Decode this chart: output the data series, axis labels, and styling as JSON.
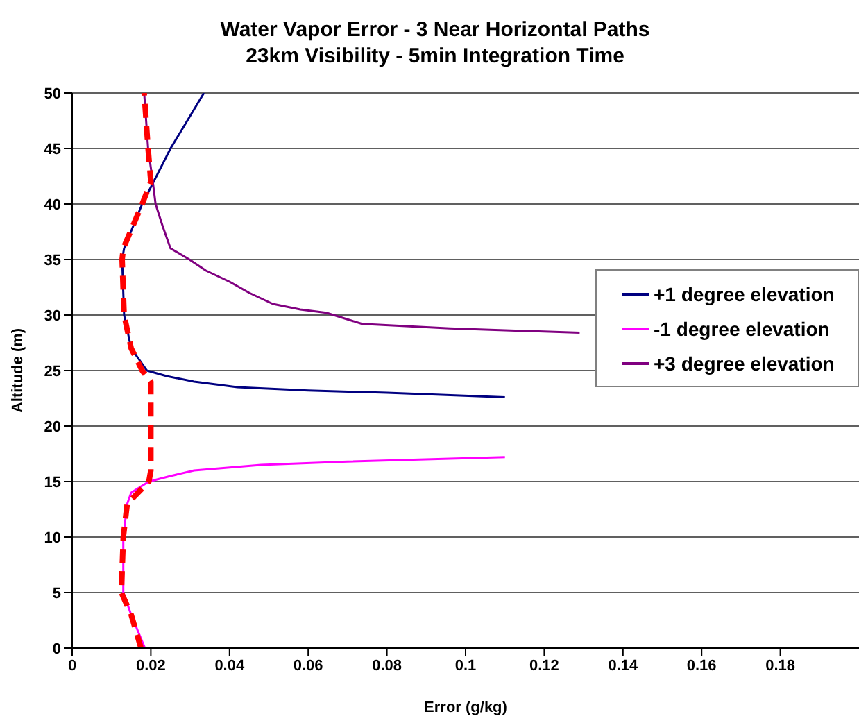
{
  "chart_data": {
    "type": "line",
    "title": "Water Vapor Error - 3 Near Horizontal Paths\n23km Visibility - 5min Integration Time",
    "xlabel": "Error (g/kg)",
    "ylabel": "Altitude (m)",
    "xlim": [
      0,
      0.2
    ],
    "xticks": [
      0,
      0.02,
      0.04,
      0.06,
      0.08,
      0.1,
      0.12,
      0.14,
      0.16,
      0.18
    ],
    "ylim": [
      0,
      50
    ],
    "yticks": [
      0,
      5,
      10,
      15,
      20,
      25,
      30,
      35,
      40,
      45,
      50
    ],
    "grid": "y",
    "legend": "right",
    "marker": "none",
    "series": [
      {
        "name": "+1 degree elevation",
        "color": "#000080",
        "line_style": "solid",
        "x": [
          0.0335,
          0.025,
          0.0207,
          0.0178,
          0.0132,
          0.0127,
          0.0132,
          0.015,
          0.019,
          0.024,
          0.031,
          0.042,
          0.06,
          0.08,
          0.11
        ],
        "values": [
          50,
          45,
          42,
          40,
          36,
          35,
          30,
          27,
          25,
          24.5,
          24,
          23.5,
          23.2,
          23,
          22.6
        ]
      },
      {
        "name": "-1 degree elevation",
        "color": "#ff00ff",
        "line_style": "solid",
        "x": [
          0.0185,
          0.015,
          0.013,
          0.013,
          0.014,
          0.015,
          0.0195,
          0.025,
          0.031,
          0.048,
          0.07,
          0.11
        ],
        "values": [
          0,
          3,
          5,
          10,
          13,
          14,
          15,
          15.5,
          16,
          16.5,
          16.8,
          17.2
        ]
      },
      {
        "name": "+3 degree elevation",
        "color": "#800080",
        "line_style": "solid",
        "x": [
          0.0183,
          0.0193,
          0.0205,
          0.0212,
          0.023,
          0.025,
          0.0298,
          0.034,
          0.04,
          0.045,
          0.051,
          0.058,
          0.0646,
          0.0737,
          0.096,
          0.129
        ],
        "values": [
          50,
          45,
          42,
          40,
          38,
          36,
          35,
          34,
          33,
          32,
          31,
          30.5,
          30.2,
          29.2,
          28.8,
          28.4
        ]
      },
      {
        "color": "#ff0000",
        "line_style": "dashed",
        "x": [
          0.0175,
          0.015,
          0.0125,
          0.013,
          0.014,
          0.0195,
          0.02,
          0.02,
          0.0178,
          0.015,
          0.0132,
          0.0127,
          0.013,
          0.0178,
          0.02,
          0.0193,
          0.0183
        ],
        "values": [
          0,
          3,
          5,
          10,
          13,
          15,
          16,
          24,
          25,
          27,
          30,
          35,
          36,
          40,
          42,
          45,
          50
        ]
      }
    ]
  }
}
